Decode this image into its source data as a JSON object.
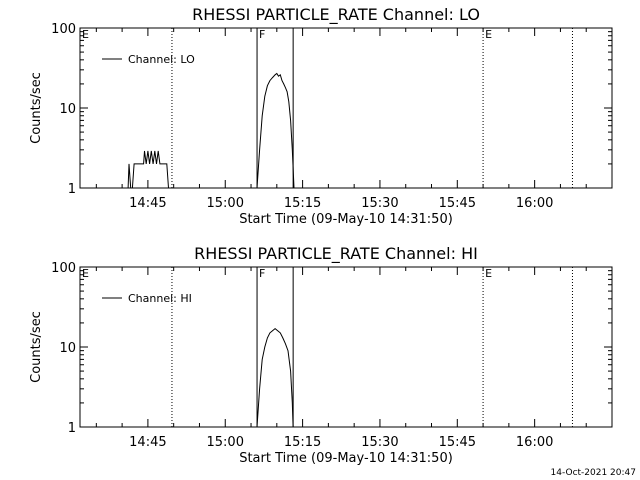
{
  "chart_data": [
    {
      "type": "line",
      "title": "RHESSI PARTICLE_RATE Channel: LO",
      "xlabel": "Start Time (09-May-10 14:31:50)",
      "ylabel": "Counts/sec",
      "yscale": "log",
      "ylim": [
        1,
        100
      ],
      "xlim": [
        "14:31:50",
        "16:15:00"
      ],
      "x_ticks": [
        "14:45",
        "15:00",
        "15:15",
        "15:30",
        "15:45",
        "16:00"
      ],
      "y_ticks": [
        "1",
        "10",
        "100"
      ],
      "legend": {
        "position": "top-left",
        "entries": [
          "Channel: LO"
        ]
      },
      "markers": [
        {
          "label": "E",
          "time": "14:31:50",
          "style": "dotted"
        },
        {
          "label": "",
          "time": "14:49:40",
          "style": "dotted"
        },
        {
          "label": "F",
          "time": "15:06:10",
          "style": "solid"
        },
        {
          "label": "",
          "time": "15:13:10",
          "style": "solid"
        },
        {
          "label": "E",
          "time": "15:50:00",
          "style": "dotted"
        },
        {
          "label": "",
          "time": "16:07:20",
          "style": "dotted"
        }
      ],
      "series": [
        {
          "name": "Channel: LO",
          "points": [
            [
              "14:41:10",
              1
            ],
            [
              "14:41:20",
              2
            ],
            [
              "14:41:40",
              1
            ],
            [
              "14:42:00",
              1
            ],
            [
              "14:42:20",
              2
            ],
            [
              "14:44:10",
              2
            ],
            [
              "14:44:20",
              2.9
            ],
            [
              "14:44:40",
              2
            ],
            [
              "14:45:00",
              2.9
            ],
            [
              "14:45:20",
              2
            ],
            [
              "14:45:40",
              2.9
            ],
            [
              "14:46:00",
              2
            ],
            [
              "14:46:20",
              2.9
            ],
            [
              "14:46:40",
              2
            ],
            [
              "14:47:00",
              2.9
            ],
            [
              "14:47:20",
              2
            ],
            [
              "14:48:40",
              2
            ],
            [
              "14:49:00",
              1
            ],
            [
              "15:06:10",
              1
            ],
            [
              "15:06:40",
              3
            ],
            [
              "15:07:10",
              8
            ],
            [
              "15:07:40",
              14
            ],
            [
              "15:08:10",
              19
            ],
            [
              "15:08:40",
              22
            ],
            [
              "15:09:10",
              24
            ],
            [
              "15:09:40",
              26
            ],
            [
              "15:10:00",
              27
            ],
            [
              "15:10:20",
              25
            ],
            [
              "15:10:40",
              26
            ],
            [
              "15:11:00",
              22
            ],
            [
              "15:11:20",
              20
            ],
            [
              "15:11:40",
              18
            ],
            [
              "15:12:00",
              16
            ],
            [
              "15:12:20",
              12
            ],
            [
              "15:12:40",
              7
            ],
            [
              "15:13:00",
              3
            ],
            [
              "15:13:20",
              1
            ]
          ]
        }
      ]
    },
    {
      "type": "line",
      "title": "RHESSI PARTICLE_RATE Channel: HI",
      "xlabel": "Start Time (09-May-10 14:31:50)",
      "ylabel": "Counts/sec",
      "yscale": "log",
      "ylim": [
        1,
        100
      ],
      "xlim": [
        "14:31:50",
        "16:15:00"
      ],
      "x_ticks": [
        "14:45",
        "15:00",
        "15:15",
        "15:30",
        "15:45",
        "16:00"
      ],
      "y_ticks": [
        "1",
        "10",
        "100"
      ],
      "legend": {
        "position": "top-left",
        "entries": [
          "Channel: HI"
        ]
      },
      "markers": [
        {
          "label": "E",
          "time": "14:31:50",
          "style": "dotted"
        },
        {
          "label": "",
          "time": "14:49:40",
          "style": "dotted"
        },
        {
          "label": "F",
          "time": "15:06:10",
          "style": "solid"
        },
        {
          "label": "",
          "time": "15:13:10",
          "style": "solid"
        },
        {
          "label": "E",
          "time": "15:50:00",
          "style": "dotted"
        },
        {
          "label": "",
          "time": "16:07:20",
          "style": "dotted"
        }
      ],
      "series": [
        {
          "name": "Channel: HI",
          "points": [
            [
              "15:06:10",
              1
            ],
            [
              "15:06:40",
              3
            ],
            [
              "15:07:10",
              7
            ],
            [
              "15:07:40",
              10
            ],
            [
              "15:08:10",
              13
            ],
            [
              "15:08:40",
              15
            ],
            [
              "15:09:10",
              16
            ],
            [
              "15:09:40",
              17
            ],
            [
              "15:10:10",
              16
            ],
            [
              "15:10:40",
              15
            ],
            [
              "15:11:10",
              13
            ],
            [
              "15:11:40",
              11
            ],
            [
              "15:12:10",
              9
            ],
            [
              "15:12:40",
              5
            ],
            [
              "15:13:00",
              2
            ],
            [
              "15:13:10",
              1
            ]
          ]
        }
      ]
    }
  ],
  "footer": {
    "timestamp": "14-Oct-2021 20:47"
  }
}
